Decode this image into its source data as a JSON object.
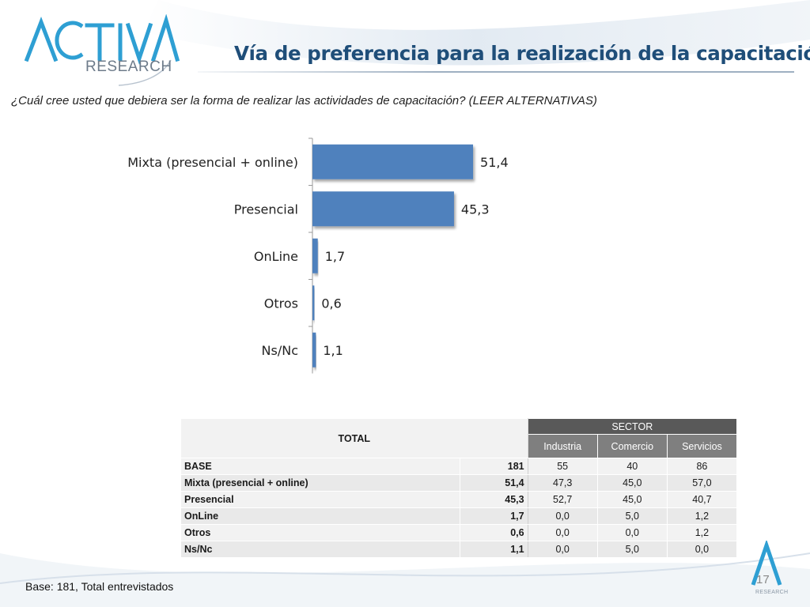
{
  "brand": {
    "logo_word": "ACTIVA",
    "logo_sub": "RESEARCH",
    "footer_logo_sub": "RESEARCH",
    "accent": "#1f4e79",
    "logo_color": "#2e9fd3"
  },
  "slide": {
    "title": "Vía de preferencia para la realización de la capacitación",
    "question": "¿Cuál cree usted que debiera ser la forma de realizar las actividades de capacitación? (LEER ALTERNATIVAS)",
    "base_note": "Base: 181, Total entrevistados",
    "page_number": "17"
  },
  "chart_data": {
    "type": "bar",
    "orientation": "horizontal",
    "categories": [
      "Mixta (presencial + online)",
      "Presencial",
      "OnLine",
      "Otros",
      "Ns/Nc"
    ],
    "values": [
      51.4,
      45.3,
      1.7,
      0.6,
      1.1
    ],
    "value_labels": [
      "51,4",
      "45,3",
      "1,7",
      "0,6",
      "1,1"
    ],
    "xlim": [
      0,
      60
    ],
    "bar_color": "#4f81bd",
    "grid": false,
    "legend": "none"
  },
  "table": {
    "total_header": "TOTAL",
    "sector_header": "SECTOR",
    "sector_columns": [
      "Industria",
      "Comercio",
      "Servicios"
    ],
    "rows": [
      {
        "label": "BASE",
        "total": "181",
        "values": [
          "55",
          "40",
          "86"
        ]
      },
      {
        "label": "Mixta (presencial + online)",
        "total": "51,4",
        "values": [
          "47,3",
          "45,0",
          "57,0"
        ]
      },
      {
        "label": "Presencial",
        "total": "45,3",
        "values": [
          "52,7",
          "45,0",
          "40,7"
        ]
      },
      {
        "label": "OnLine",
        "total": "1,7",
        "values": [
          "0,0",
          "5,0",
          "1,2"
        ]
      },
      {
        "label": "Otros",
        "total": "0,6",
        "values": [
          "0,0",
          "0,0",
          "1,2"
        ]
      },
      {
        "label": "Ns/Nc",
        "total": "1,1",
        "values": [
          "0,0",
          "5,0",
          "0,0"
        ]
      }
    ]
  }
}
